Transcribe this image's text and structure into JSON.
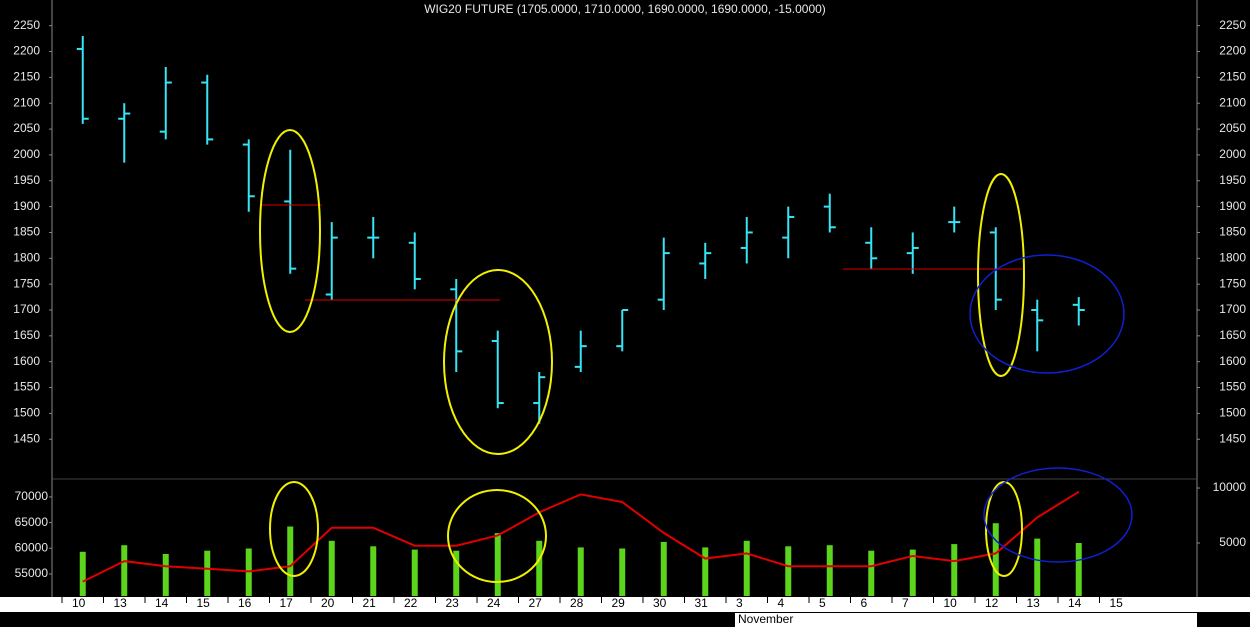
{
  "chart_data": {
    "type": "ohlc",
    "title": "WIG20 FUTURE (1705.0000, 1710.0000, 1690.0000, 1690.0000, -15.0000)",
    "categories": [
      "10",
      "13",
      "14",
      "15",
      "16",
      "17",
      "20",
      "21",
      "22",
      "23",
      "24",
      "27",
      "28",
      "29",
      "30",
      "31",
      "3",
      "4",
      "5",
      "6",
      "7",
      "10",
      "12",
      "13",
      "14",
      "15"
    ],
    "x_label": "November",
    "color": "#38e4f4",
    "open": [
      2205,
      2070,
      2045,
      2140,
      2020,
      1910,
      1730,
      1840,
      1830,
      1740,
      1640,
      1520,
      1590,
      1630,
      1720,
      1790,
      1820,
      1840,
      1900,
      1830,
      1810,
      1870,
      1850,
      1700,
      1710,
      null
    ],
    "high": [
      2230,
      2100,
      2170,
      2155,
      2030,
      2010,
      1870,
      1880,
      1850,
      1760,
      1660,
      1580,
      1660,
      1700,
      1840,
      1830,
      1880,
      1900,
      1925,
      1860,
      1850,
      1900,
      1860,
      1720,
      1725,
      null
    ],
    "low": [
      2060,
      1985,
      2030,
      2020,
      1890,
      1770,
      1720,
      1800,
      1740,
      1580,
      1510,
      1480,
      1580,
      1620,
      1700,
      1760,
      1790,
      1800,
      1850,
      1780,
      1770,
      1850,
      1700,
      1620,
      1670,
      null
    ],
    "close": [
      2070,
      2080,
      2140,
      2030,
      1920,
      1780,
      1840,
      1840,
      1760,
      1620,
      1520,
      1570,
      1630,
      1700,
      1810,
      1810,
      1850,
      1880,
      1860,
      1800,
      1820,
      1870,
      1720,
      1680,
      1700,
      null
    ],
    "ylim": [
      1375,
      2290
    ],
    "yticks": [
      1450,
      1500,
      1550,
      1600,
      1650,
      1700,
      1750,
      1800,
      1850,
      1900,
      1950,
      2000,
      2050,
      2100,
      2150,
      2200,
      2250
    ],
    "lower_panel": {
      "ylim": [
        50700,
        73300
      ],
      "yticks": [
        55000,
        60000,
        65000,
        70000
      ],
      "y2lim": [
        180,
        10730
      ],
      "y2ticks": [
        5000,
        10000
      ],
      "series": [
        {
          "type": "bar",
          "axis": "y2",
          "color": "#5cd41c",
          "values": [
            4200,
            4800,
            4000,
            4300,
            4500,
            6500,
            5200,
            4700,
            4400,
            4300,
            5900,
            5200,
            4600,
            4500,
            5100,
            4600,
            5200,
            4700,
            4800,
            4300,
            4400,
            4900,
            6800,
            5400,
            5000,
            null
          ]
        },
        {
          "type": "line",
          "color": "#e00000",
          "values": [
            53500,
            57500,
            56500,
            56000,
            55500,
            56500,
            64000,
            64000,
            60500,
            60500,
            62500,
            67000,
            70500,
            69000,
            63000,
            58000,
            59000,
            56500,
            56500,
            56500,
            58500,
            57500,
            59000,
            66000,
            71000,
            null
          ]
        }
      ]
    }
  }
}
